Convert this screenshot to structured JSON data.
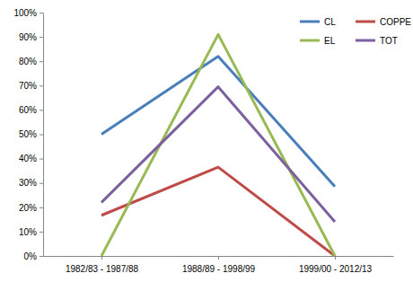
{
  "chart_data": {
    "type": "line",
    "categories": [
      "1982/83 - 1987/88",
      "1988/89 - 1998/99",
      "1999/00 - 2012/13"
    ],
    "series": [
      {
        "name": "CL",
        "color": "#4a7ebb",
        "values": [
          50,
          82,
          28.5
        ]
      },
      {
        "name": "COPPE",
        "color": "#be4b48",
        "values": [
          16.7,
          36.5,
          0
        ]
      },
      {
        "name": "EL",
        "color": "#98b954",
        "values": [
          0,
          91,
          0
        ]
      },
      {
        "name": "TOT",
        "color": "#7d60a0",
        "values": [
          22,
          69.5,
          14
        ]
      }
    ],
    "ylim": [
      0,
      100
    ],
    "yticks": [
      {
        "value": 0,
        "label": "0%"
      },
      {
        "value": 10,
        "label": "10%"
      },
      {
        "value": 20,
        "label": "20%"
      },
      {
        "value": 30,
        "label": "30%"
      },
      {
        "value": 40,
        "label": "40%"
      },
      {
        "value": 50,
        "label": "50%"
      },
      {
        "value": 60,
        "label": "60%"
      },
      {
        "value": 70,
        "label": "70%"
      },
      {
        "value": 80,
        "label": "80%"
      },
      {
        "value": 90,
        "label": "90%"
      },
      {
        "value": 100,
        "label": "100%"
      }
    ],
    "grid": false,
    "legend": "upper right"
  }
}
